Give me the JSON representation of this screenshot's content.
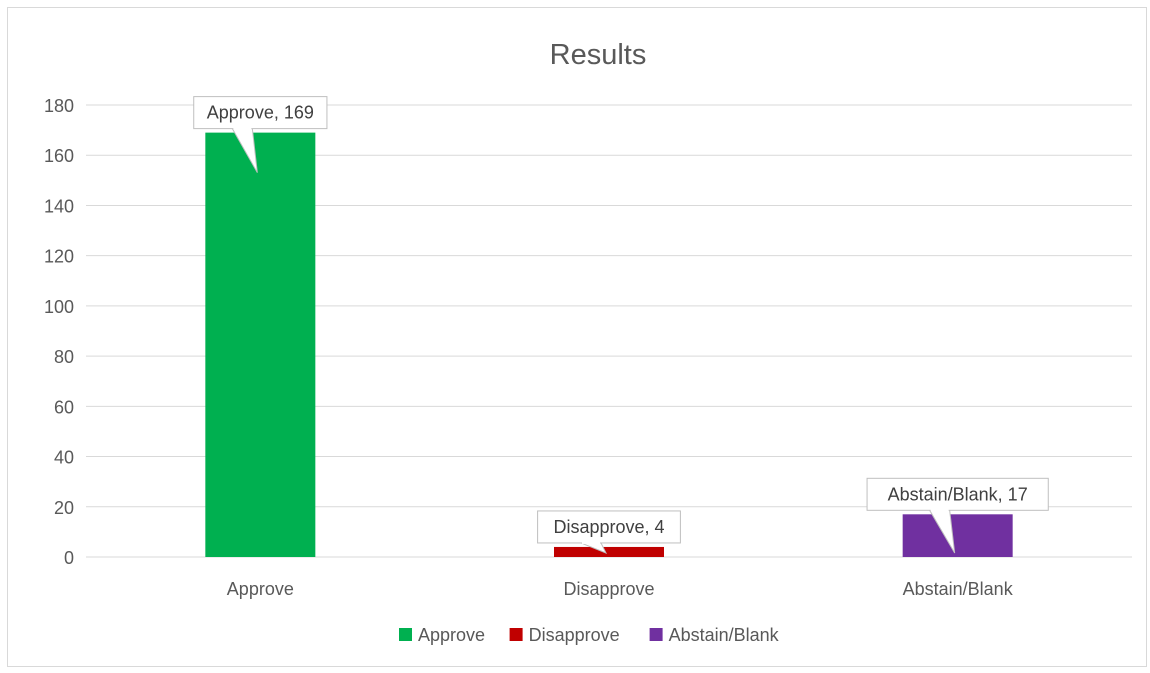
{
  "chart_data": {
    "type": "bar",
    "title": "Results",
    "xlabel": "",
    "ylabel": "",
    "ylim": [
      0,
      180
    ],
    "yticks": [
      0,
      20,
      40,
      60,
      80,
      100,
      120,
      140,
      160,
      180
    ],
    "grid": true,
    "legend_position": "bottom",
    "categories": [
      "Approve",
      "Disapprove",
      "Abstain/Blank"
    ],
    "series": [
      {
        "name": "Approve",
        "color": "#00b050",
        "values": [
          169,
          null,
          null
        ]
      },
      {
        "name": "Disapprove",
        "color": "#c00000",
        "values": [
          null,
          4,
          null
        ]
      },
      {
        "name": "Abstain/Blank",
        "color": "#7030a0",
        "values": [
          null,
          null,
          17
        ]
      }
    ],
    "data_labels": [
      "Approve, 169",
      "Disapprove, 4",
      "Abstain/Blank, 17"
    ]
  }
}
